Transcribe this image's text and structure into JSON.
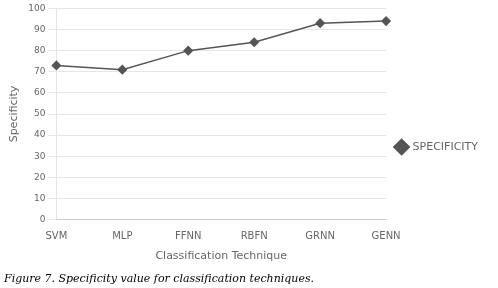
{
  "chart_data": {
    "type": "line",
    "caption": "Figure 7. Specificity value for classification techniques.",
    "x_label": "Classification Technique",
    "y_label": "Specificity",
    "categories": [
      "SVM",
      "MLP",
      "FFNN",
      "RBFN",
      "GRNN",
      "GENN"
    ],
    "series": [
      {
        "name": "SPECIFICITY",
        "color": "#555555",
        "marker": "diamond",
        "values": [
          73,
          71,
          80,
          84,
          93,
          94
        ]
      }
    ],
    "ylim": [
      0,
      100
    ],
    "yticks": [
      0,
      10,
      20,
      30,
      40,
      50,
      60,
      70,
      80,
      90,
      100
    ],
    "grid": "y",
    "legend": "right"
  }
}
